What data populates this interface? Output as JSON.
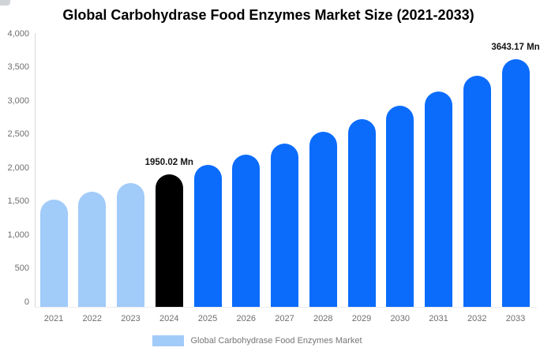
{
  "chart_data": {
    "type": "bar",
    "title": "Global Carbohydrase Food Enzymes Market Size (2021-2033)",
    "categories": [
      "2021",
      "2022",
      "2023",
      "2024",
      "2025",
      "2026",
      "2027",
      "2028",
      "2029",
      "2030",
      "2031",
      "2032",
      "2033"
    ],
    "values": [
      1583,
      1697,
      1819,
      1950.02,
      2090,
      2241,
      2402,
      2574,
      2760,
      2958,
      3171,
      3399,
      3643.17
    ],
    "unit": "Mn",
    "xlabel": "",
    "ylabel": "",
    "ylim": [
      0,
      4000
    ],
    "ytick_interval": 500,
    "ytick_labels": [
      "4,000",
      "3,500",
      "3,000",
      "2,500",
      "2,000",
      "1,500",
      "1,000",
      "500",
      "0"
    ],
    "grid": false,
    "legend_position": "bottom",
    "data_labels": [
      {
        "category": "2024",
        "text": "1950.02 Mn"
      },
      {
        "category": "2033",
        "text": "3643.17 Mn"
      }
    ],
    "point_colors": [
      "#A1CBF9",
      "#A1CBF9",
      "#A1CBF9",
      "#000000",
      "#0B6CFC",
      "#0B6CFC",
      "#0B6CFC",
      "#0B6CFC",
      "#0B6CFC",
      "#0B6CFC",
      "#0B6CFC",
      "#0B6CFC",
      "#0B6CFC"
    ],
    "colors": {
      "historical": "#A1CBF9",
      "base_year": "#000000",
      "forecast": "#0B6CFC",
      "axis_line": "#d9d9d9",
      "tick_text": "#6e6e6e"
    }
  },
  "legend": {
    "label": "Global Carbohydrase Food Enzymes Market",
    "swatch_color": "#A1CBF9"
  }
}
